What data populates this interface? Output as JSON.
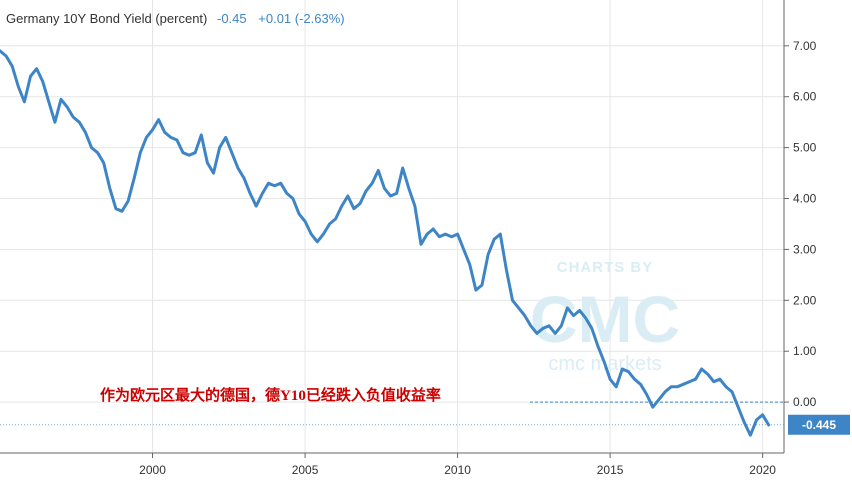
{
  "header": {
    "title": "Germany 10Y Bond Yield (percent)",
    "last": "-0.45",
    "change": "+0.01 (-2.63%)"
  },
  "annotation": "作为欧元区最大的德国，德Y10已经跌入负值收益率",
  "watermark": {
    "top": "CHARTS BY",
    "logo": "CMC",
    "bottom": "cmc markets"
  },
  "colors": {
    "line": "#3d85c6",
    "title": "#333333",
    "value": "#3d85c6",
    "annotation": "#cc0000",
    "badge": "#3d85c6"
  },
  "chart_data": {
    "type": "line",
    "title": "Germany 10Y Bond Yield (percent)",
    "xlabel": "",
    "ylabel": "",
    "xlim": [
      1995.0,
      2020.7
    ],
    "ylim": [
      -1.0,
      7.9
    ],
    "x_ticks": [
      2000,
      2005,
      2010,
      2015,
      2020
    ],
    "x_tick_labels": [
      "2000",
      "2005",
      "2010",
      "2015",
      "2020"
    ],
    "y_ticks": [
      0,
      1,
      2,
      3,
      4,
      5,
      6,
      7
    ],
    "y_tick_labels": [
      "0.00",
      "1.00",
      "2.00",
      "3.00",
      "4.00",
      "5.00",
      "6.00",
      "7.00"
    ],
    "grid": true,
    "last_value_label": "-0.445",
    "last_value": -0.445,
    "reference_line": 0.0,
    "series": [
      {
        "x": [
          1995.0,
          1995.2,
          1995.4,
          1995.6,
          1995.8,
          1996.0,
          1996.2,
          1996.4,
          1996.6,
          1996.8,
          1997.0,
          1997.2,
          1997.4,
          1997.6,
          1997.8,
          1998.0,
          1998.2,
          1998.4,
          1998.6,
          1998.8,
          1999.0,
          1999.2,
          1999.4,
          1999.6,
          1999.8,
          2000.0,
          2000.2,
          2000.4,
          2000.6,
          2000.8,
          2001.0,
          2001.2,
          2001.4,
          2001.6,
          2001.8,
          2002.0,
          2002.2,
          2002.4,
          2002.6,
          2002.8,
          2003.0,
          2003.2,
          2003.4,
          2003.6,
          2003.8,
          2004.0,
          2004.2,
          2004.4,
          2004.6,
          2004.8,
          2005.0,
          2005.2,
          2005.4,
          2005.6,
          2005.8,
          2006.0,
          2006.2,
          2006.4,
          2006.6,
          2006.8,
          2007.0,
          2007.2,
          2007.4,
          2007.6,
          2007.8,
          2008.0,
          2008.2,
          2008.4,
          2008.6,
          2008.8,
          2009.0,
          2009.2,
          2009.4,
          2009.6,
          2009.8,
          2010.0,
          2010.2,
          2010.4,
          2010.6,
          2010.8,
          2011.0,
          2011.2,
          2011.4,
          2011.6,
          2011.8,
          2012.0,
          2012.2,
          2012.4,
          2012.6,
          2012.8,
          2013.0,
          2013.2,
          2013.4,
          2013.6,
          2013.8,
          2014.0,
          2014.2,
          2014.4,
          2014.6,
          2014.8,
          2015.0,
          2015.2,
          2015.4,
          2015.6,
          2015.8,
          2016.0,
          2016.2,
          2016.4,
          2016.6,
          2016.8,
          2017.0,
          2017.2,
          2017.4,
          2017.6,
          2017.8,
          2018.0,
          2018.2,
          2018.4,
          2018.6,
          2018.8,
          2019.0,
          2019.2,
          2019.4,
          2019.6,
          2019.8,
          2020.0,
          2020.2
        ],
        "values": [
          6.9,
          6.8,
          6.6,
          6.2,
          5.9,
          6.4,
          6.55,
          6.3,
          5.9,
          5.5,
          5.95,
          5.8,
          5.6,
          5.5,
          5.3,
          5.0,
          4.9,
          4.7,
          4.2,
          3.8,
          3.75,
          3.95,
          4.4,
          4.9,
          5.2,
          5.35,
          5.55,
          5.3,
          5.2,
          5.15,
          4.9,
          4.85,
          4.9,
          5.25,
          4.7,
          4.5,
          5.0,
          5.2,
          4.9,
          4.6,
          4.4,
          4.1,
          3.85,
          4.1,
          4.3,
          4.25,
          4.3,
          4.1,
          4.0,
          3.7,
          3.55,
          3.3,
          3.15,
          3.3,
          3.5,
          3.6,
          3.85,
          4.05,
          3.8,
          3.9,
          4.15,
          4.3,
          4.55,
          4.2,
          4.05,
          4.1,
          4.6,
          4.2,
          3.85,
          3.1,
          3.3,
          3.4,
          3.25,
          3.3,
          3.25,
          3.3,
          3.0,
          2.7,
          2.2,
          2.3,
          2.9,
          3.2,
          3.3,
          2.6,
          2.0,
          1.85,
          1.7,
          1.5,
          1.35,
          1.45,
          1.5,
          1.35,
          1.5,
          1.85,
          1.7,
          1.8,
          1.65,
          1.45,
          1.1,
          0.8,
          0.45,
          0.3,
          0.65,
          0.6,
          0.45,
          0.35,
          0.15,
          -0.1,
          0.05,
          0.2,
          0.3,
          0.3,
          0.35,
          0.4,
          0.45,
          0.65,
          0.55,
          0.4,
          0.45,
          0.3,
          0.2,
          -0.1,
          -0.4,
          -0.65,
          -0.35,
          -0.25,
          -0.45
        ]
      }
    ]
  }
}
